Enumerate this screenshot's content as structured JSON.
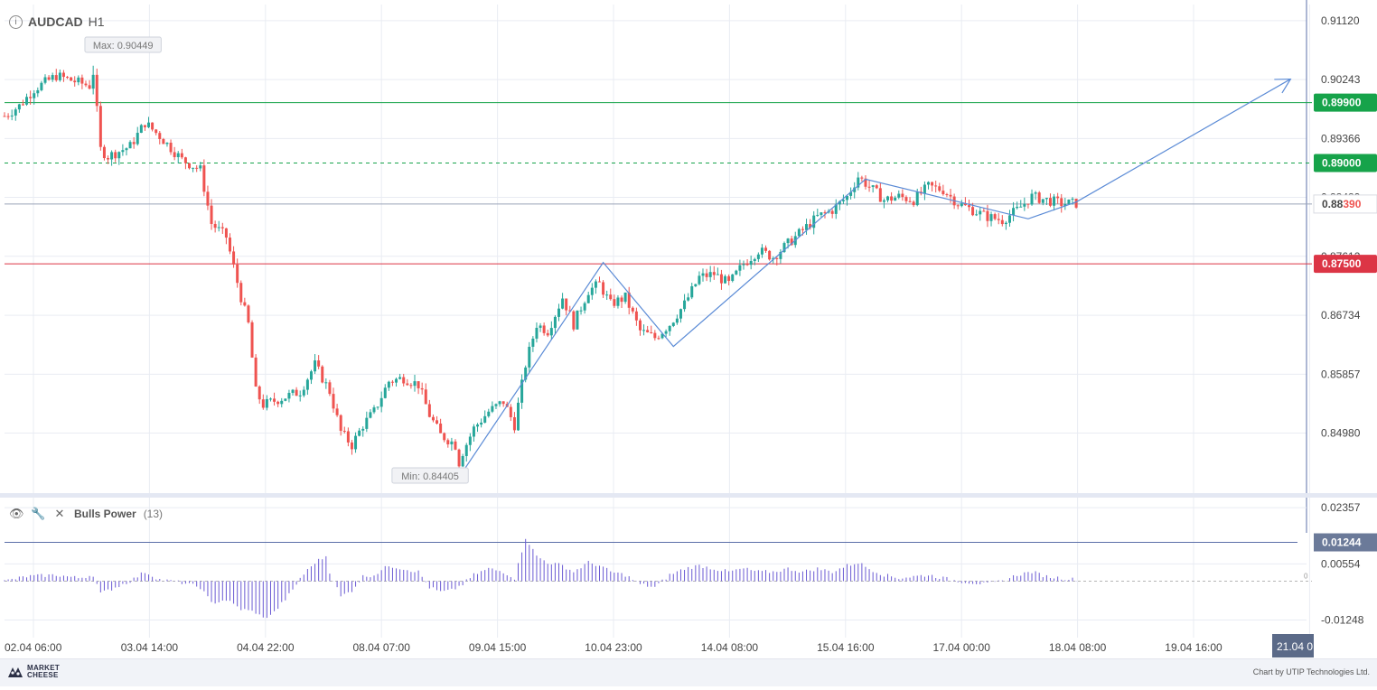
{
  "header": {
    "symbol": "AUDCAD",
    "timeframe": "H1"
  },
  "indicator": {
    "name": "Bulls Power",
    "period": "(13)"
  },
  "footer": {
    "logo_line1": "MARKET",
    "logo_line2": "CHEESE",
    "credit": "Chart by UTIP Technologies Ltd."
  },
  "colors": {
    "up": "#26a69a",
    "down": "#ef5350",
    "resistance": "#16a34a",
    "support": "#dc3545",
    "pattern": "#5b8bd6",
    "grid": "#e9ecf3",
    "bulls_power": "#6a5ad3",
    "current_price": "#ef5350"
  },
  "chart_data": [
    {
      "type": "candlestick",
      "symbol": "AUDCAD",
      "timeframe": "H1",
      "ylim": [
        0.841,
        0.9136
      ],
      "y_ticks": [
        "0.91120",
        "0.90243",
        "0.89366",
        "0.88489",
        "0.87612",
        "0.86734",
        "0.85857",
        "0.84980"
      ],
      "x_ticks": [
        "02.04 06:00",
        "03.04 14:00",
        "04.04 22:00",
        "08.04 07:00",
        "09.04 15:00",
        "10.04 23:00",
        "14.04 08:00",
        "15.04 16:00",
        "17.04 00:00",
        "18.04 08:00",
        "19.04 16:00"
      ],
      "x_future_tick": "21.04 0",
      "price_levels": [
        {
          "label": "0.89900",
          "value": 0.899,
          "style": "solid",
          "color": "#16a34a"
        },
        {
          "label": "0.89000",
          "value": 0.89,
          "style": "dashed",
          "color": "#16a34a"
        },
        {
          "label": "0.87500",
          "value": 0.875,
          "style": "solid",
          "color": "#dc3545"
        }
      ],
      "current_price": {
        "value": 0.8839,
        "prefix": "0.88",
        "suffix": "390"
      },
      "max_label": {
        "text": "Max: 0.90449",
        "value": 0.90449,
        "x_index": 24
      },
      "min_label": {
        "text": "Min: 0.84405",
        "value": 0.84405,
        "x_index": 123
      },
      "price_path": [
        [
          0,
          0.897
        ],
        [
          4,
          0.8985
        ],
        [
          8,
          0.901
        ],
        [
          14,
          0.903
        ],
        [
          20,
          0.902
        ],
        [
          23,
          0.9015
        ],
        [
          24,
          0.9035
        ],
        [
          26,
          0.892
        ],
        [
          28,
          0.891
        ],
        [
          34,
          0.8925
        ],
        [
          38,
          0.896
        ],
        [
          42,
          0.894
        ],
        [
          48,
          0.8905
        ],
        [
          53,
          0.889
        ],
        [
          56,
          0.881
        ],
        [
          60,
          0.879
        ],
        [
          64,
          0.87
        ],
        [
          66,
          0.866
        ],
        [
          68,
          0.856
        ],
        [
          70,
          0.854
        ],
        [
          75,
          0.855
        ],
        [
          80,
          0.856
        ],
        [
          84,
          0.86
        ],
        [
          88,
          0.856
        ],
        [
          91,
          0.85
        ],
        [
          94,
          0.848
        ],
        [
          97,
          0.851
        ],
        [
          100,
          0.853
        ],
        [
          104,
          0.8575
        ],
        [
          108,
          0.858
        ],
        [
          112,
          0.857
        ],
        [
          115,
          0.8525
        ],
        [
          118,
          0.8495
        ],
        [
          121,
          0.8485
        ],
        [
          124,
          0.847
        ],
        [
          127,
          0.8505
        ],
        [
          131,
          0.853
        ],
        [
          135,
          0.8545
        ],
        [
          138,
          0.851
        ],
        [
          141,
          0.86
        ],
        [
          144,
          0.866
        ],
        [
          147,
          0.865
        ],
        [
          151,
          0.87
        ],
        [
          154,
          0.866
        ],
        [
          158,
          0.871
        ],
        [
          161,
          0.872
        ],
        [
          164,
          0.869
        ],
        [
          168,
          0.87
        ],
        [
          172,
          0.865
        ],
        [
          176,
          0.864
        ],
        [
          180,
          0.866
        ],
        [
          184,
          0.869
        ],
        [
          188,
          0.873
        ],
        [
          192,
          0.8735
        ],
        [
          196,
          0.872
        ],
        [
          200,
          0.875
        ],
        [
          204,
          0.877
        ],
        [
          208,
          0.876
        ],
        [
          212,
          0.878
        ],
        [
          216,
          0.88
        ],
        [
          220,
          0.882
        ],
        [
          224,
          0.883
        ],
        [
          228,
          0.885
        ],
        [
          231,
          0.888
        ],
        [
          234,
          0.8865
        ],
        [
          238,
          0.8845
        ],
        [
          242,
          0.885
        ],
        [
          246,
          0.8845
        ],
        [
          250,
          0.8865
        ],
        [
          254,
          0.886
        ],
        [
          258,
          0.884
        ],
        [
          262,
          0.883
        ],
        [
          266,
          0.882
        ],
        [
          270,
          0.8815
        ],
        [
          274,
          0.883
        ],
        [
          278,
          0.885
        ],
        [
          282,
          0.8845
        ],
        [
          286,
          0.884
        ],
        [
          290,
          0.884
        ]
      ],
      "pattern_line": [
        [
          124,
          0.84405
        ],
        [
          162,
          0.8752
        ],
        [
          181,
          0.8627
        ],
        [
          233,
          0.8876
        ],
        [
          277,
          0.8817
        ],
        [
          290,
          0.8842
        ],
        [
          348,
          0.9025
        ]
      ]
    },
    {
      "type": "bar",
      "name": "Bulls Power",
      "period": 13,
      "ylim": [
        -0.0158,
        0.0265
      ],
      "y_ticks": [
        "0.02357",
        "0.00554",
        "-0.01248"
      ],
      "level": {
        "label": "0.01244",
        "value": 0.01244
      },
      "zero_marker": "0",
      "values_path": [
        [
          0,
          0.0
        ],
        [
          6,
          0.0015
        ],
        [
          14,
          0.002
        ],
        [
          20,
          0.001
        ],
        [
          24,
          0.002
        ],
        [
          26,
          -0.004
        ],
        [
          30,
          -0.002
        ],
        [
          34,
          0.0
        ],
        [
          38,
          0.003
        ],
        [
          42,
          0.0005
        ],
        [
          48,
          -0.0005
        ],
        [
          53,
          -0.002
        ],
        [
          56,
          -0.007
        ],
        [
          60,
          -0.006
        ],
        [
          64,
          -0.009
        ],
        [
          68,
          -0.01
        ],
        [
          70,
          -0.012
        ],
        [
          73,
          -0.01
        ],
        [
          78,
          -0.003
        ],
        [
          80,
          0.001
        ],
        [
          84,
          0.006
        ],
        [
          87,
          0.008
        ],
        [
          88,
          0.003
        ],
        [
          91,
          -0.005
        ],
        [
          94,
          -0.003
        ],
        [
          97,
          0.0015
        ],
        [
          100,
          0.002
        ],
        [
          104,
          0.005
        ],
        [
          108,
          0.004
        ],
        [
          112,
          0.003
        ],
        [
          115,
          -0.002
        ],
        [
          118,
          -0.0035
        ],
        [
          121,
          -0.003
        ],
        [
          124,
          -0.001
        ],
        [
          127,
          0.002
        ],
        [
          131,
          0.004
        ],
        [
          135,
          0.003
        ],
        [
          138,
          0.001
        ],
        [
          141,
          0.014
        ],
        [
          144,
          0.008
        ],
        [
          147,
          0.006
        ],
        [
          151,
          0.005
        ],
        [
          154,
          0.003
        ],
        [
          158,
          0.006
        ],
        [
          161,
          0.005
        ],
        [
          164,
          0.003
        ],
        [
          168,
          0.002
        ],
        [
          172,
          -0.001
        ],
        [
          176,
          -0.002
        ],
        [
          180,
          0.002
        ],
        [
          184,
          0.004
        ],
        [
          188,
          0.005
        ],
        [
          192,
          0.004
        ],
        [
          196,
          0.003
        ],
        [
          200,
          0.004
        ],
        [
          204,
          0.003
        ],
        [
          208,
          0.003
        ],
        [
          212,
          0.004
        ],
        [
          216,
          0.003
        ],
        [
          220,
          0.004
        ],
        [
          224,
          0.003
        ],
        [
          228,
          0.005
        ],
        [
          231,
          0.006
        ],
        [
          234,
          0.004
        ],
        [
          238,
          0.002
        ],
        [
          242,
          0.001
        ],
        [
          246,
          0.0015
        ],
        [
          250,
          0.002
        ],
        [
          254,
          0.001
        ],
        [
          258,
          0.0
        ],
        [
          262,
          -0.0005
        ],
        [
          266,
          -0.001
        ],
        [
          270,
          0.0
        ],
        [
          274,
          0.002
        ],
        [
          278,
          0.003
        ],
        [
          282,
          0.0015
        ],
        [
          286,
          0.001
        ],
        [
          290,
          0.0005
        ]
      ]
    }
  ]
}
